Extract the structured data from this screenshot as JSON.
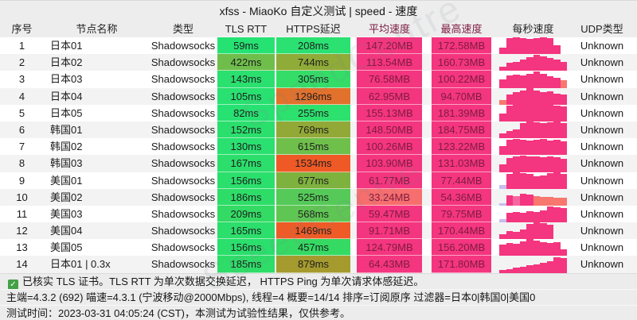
{
  "title": "xfss - MiaoKo 自定义测试 | speed - 速度",
  "watermark": "SpeedCentre",
  "columns": [
    "序号",
    "节点名称",
    "类型",
    "TLS RTT",
    "HTTPS延迟",
    "平均速度",
    "最高速度",
    "每秒速度",
    "UDP类型"
  ],
  "bar_colors": {
    "p": "#f4357f",
    "s": "#f8776e",
    "l": "#c9bcf0",
    "lp": "#f566a0"
  },
  "rows": [
    {
      "idx": "1",
      "name": "日本01",
      "type": "Shadowsocks",
      "tls": "59ms",
      "tls_color": "#26e273",
      "https": "208ms",
      "https_color": "#2ae171",
      "avg": "147.20MB",
      "avg_color": "#f4357f",
      "max": "172.58MB",
      "max_color": "#f4357f",
      "udp": "Unknown",
      "bars": [
        [
          38,
          "p"
        ],
        [
          96,
          "p"
        ],
        [
          100,
          "p"
        ],
        [
          97,
          "p"
        ],
        [
          92,
          "p"
        ],
        [
          97,
          "p"
        ],
        [
          100,
          "p"
        ],
        [
          93,
          "p"
        ],
        [
          55,
          "p"
        ],
        [
          0,
          "p"
        ]
      ]
    },
    {
      "idx": "2",
      "name": "日本02",
      "type": "Shadowsocks",
      "tls": "422ms",
      "tls_color": "#6fbe4c",
      "https": "744ms",
      "https_color": "#8fab38",
      "avg": "113.54MB",
      "avg_color": "#f4357f",
      "max": "160.73MB",
      "max_color": "#f4357f",
      "udp": "Unknown",
      "bars": [
        [
          24,
          "p"
        ],
        [
          48,
          "p"
        ],
        [
          56,
          "p"
        ],
        [
          66,
          "p"
        ],
        [
          80,
          "p"
        ],
        [
          95,
          "p"
        ],
        [
          88,
          "p"
        ],
        [
          78,
          "p"
        ],
        [
          66,
          "p"
        ],
        [
          54,
          "p"
        ]
      ]
    },
    {
      "idx": "3",
      "name": "日本03",
      "type": "Shadowsocks",
      "tls": "143ms",
      "tls_color": "#2ae06e",
      "https": "305ms",
      "https_color": "#33dd68",
      "avg": "76.58MB",
      "avg_color": "#f4357f",
      "max": "100.22MB",
      "max_color": "#f4357f",
      "udp": "Unknown",
      "bars": [
        [
          52,
          "p"
        ],
        [
          72,
          "p"
        ],
        [
          78,
          "p"
        ],
        [
          74,
          "p"
        ],
        [
          82,
          "p"
        ],
        [
          96,
          "p"
        ],
        [
          84,
          "p"
        ],
        [
          68,
          "p"
        ],
        [
          58,
          "p"
        ],
        [
          46,
          "s"
        ]
      ]
    },
    {
      "idx": "4",
      "name": "日本04",
      "type": "Shadowsocks",
      "tls": "105ms",
      "tls_color": "#28e171",
      "https": "1296ms",
      "https_color": "#e2712c",
      "avg": "62.95MB",
      "avg_color": "#f4357f",
      "max": "94.70MB",
      "max_color": "#f4357f",
      "udp": "Unknown",
      "bars": [
        [
          28,
          "s"
        ],
        [
          58,
          "p"
        ],
        [
          74,
          "p"
        ],
        [
          86,
          "p"
        ],
        [
          97,
          "p"
        ],
        [
          86,
          "p"
        ],
        [
          74,
          "p"
        ],
        [
          80,
          "p"
        ],
        [
          64,
          "p"
        ],
        [
          58,
          "p"
        ]
      ]
    },
    {
      "idx": "5",
      "name": "日本05",
      "type": "Shadowsocks",
      "tls": "82ms",
      "tls_color": "#27e272",
      "https": "255ms",
      "https_color": "#2de16e",
      "avg": "155.13MB",
      "avg_color": "#f4357f",
      "max": "181.39MB",
      "max_color": "#f4357f",
      "udp": "Unknown",
      "bars": [
        [
          45,
          "p"
        ],
        [
          92,
          "p"
        ],
        [
          100,
          "p"
        ],
        [
          98,
          "p"
        ],
        [
          100,
          "p"
        ],
        [
          97,
          "p"
        ],
        [
          100,
          "p"
        ],
        [
          98,
          "p"
        ],
        [
          95,
          "p"
        ],
        [
          88,
          "p"
        ]
      ]
    },
    {
      "idx": "6",
      "name": "韩国01",
      "type": "Shadowsocks",
      "tls": "152ms",
      "tls_color": "#2bdf6d",
      "https": "769ms",
      "https_color": "#93a937",
      "avg": "148.50MB",
      "avg_color": "#f4357f",
      "max": "184.75MB",
      "max_color": "#f4357f",
      "udp": "Unknown",
      "bars": [
        [
          30,
          "p"
        ],
        [
          45,
          "p"
        ],
        [
          52,
          "p"
        ],
        [
          92,
          "p"
        ],
        [
          100,
          "p"
        ],
        [
          96,
          "p"
        ],
        [
          90,
          "p"
        ],
        [
          95,
          "p"
        ],
        [
          100,
          "p"
        ],
        [
          92,
          "p"
        ]
      ]
    },
    {
      "idx": "7",
      "name": "韩国02",
      "type": "Shadowsocks",
      "tls": "130ms",
      "tls_color": "#2ae070",
      "https": "615ms",
      "https_color": "#6ec04b",
      "avg": "100.26MB",
      "avg_color": "#f4357f",
      "max": "123.22MB",
      "max_color": "#f4357f",
      "udp": "Unknown",
      "bars": [
        [
          55,
          "p"
        ],
        [
          92,
          "p"
        ],
        [
          96,
          "p"
        ],
        [
          90,
          "p"
        ],
        [
          86,
          "p"
        ],
        [
          92,
          "p"
        ],
        [
          96,
          "p"
        ],
        [
          88,
          "p"
        ],
        [
          92,
          "p"
        ],
        [
          84,
          "p"
        ]
      ]
    },
    {
      "idx": "8",
      "name": "韩国03",
      "type": "Shadowsocks",
      "tls": "167ms",
      "tls_color": "#2cde6b",
      "https": "1534ms",
      "https_color": "#ef5926",
      "avg": "103.90MB",
      "avg_color": "#f4357f",
      "max": "131.03MB",
      "max_color": "#f4357f",
      "udp": "Unknown",
      "bars": [
        [
          46,
          "p"
        ],
        [
          82,
          "p"
        ],
        [
          94,
          "p"
        ],
        [
          97,
          "p"
        ],
        [
          93,
          "p"
        ],
        [
          90,
          "p"
        ],
        [
          86,
          "p"
        ],
        [
          92,
          "p"
        ],
        [
          86,
          "p"
        ],
        [
          78,
          "p"
        ]
      ]
    },
    {
      "idx": "9",
      "name": "美国01",
      "type": "Shadowsocks",
      "tls": "156ms",
      "tls_color": "#2bdf6c",
      "https": "677ms",
      "https_color": "#7eb23f",
      "avg": "61.77MB",
      "avg_color": "#f4357f",
      "max": "77.44MB",
      "max_color": "#f4357f",
      "udp": "Unknown",
      "bars": [
        [
          22,
          "l"
        ],
        [
          88,
          "p"
        ],
        [
          96,
          "p"
        ],
        [
          92,
          "p"
        ],
        [
          88,
          "p"
        ],
        [
          72,
          "p"
        ],
        [
          78,
          "p"
        ],
        [
          92,
          "p"
        ],
        [
          96,
          "p"
        ],
        [
          86,
          "p"
        ]
      ]
    },
    {
      "idx": "10",
      "name": "美国02",
      "type": "Shadowsocks",
      "tls": "186ms",
      "tls_color": "#2edd68",
      "https": "525ms",
      "https_color": "#55ca58",
      "avg": "33.24MB",
      "avg_color": "#f76e6e",
      "max": "54.36MB",
      "max_color": "#f4357f",
      "udp": "Unknown",
      "bars": [
        [
          15,
          "l"
        ],
        [
          62,
          "p"
        ],
        [
          58,
          "lp"
        ],
        [
          68,
          "p"
        ],
        [
          66,
          "p"
        ],
        [
          55,
          "s"
        ],
        [
          52,
          "s"
        ],
        [
          50,
          "s"
        ],
        [
          48,
          "s"
        ],
        [
          46,
          "s"
        ]
      ]
    },
    {
      "idx": "11",
      "name": "美国03",
      "type": "Shadowsocks",
      "tls": "209ms",
      "tls_color": "#33db64",
      "https": "568ms",
      "https_color": "#5fc653",
      "avg": "59.47MB",
      "avg_color": "#f4357f",
      "max": "79.75MB",
      "max_color": "#f4357f",
      "udp": "Unknown",
      "bars": [
        [
          20,
          "l"
        ],
        [
          58,
          "p"
        ],
        [
          64,
          "p"
        ],
        [
          55,
          "p"
        ],
        [
          68,
          "p"
        ],
        [
          62,
          "p"
        ],
        [
          72,
          "p"
        ],
        [
          95,
          "p"
        ],
        [
          90,
          "p"
        ],
        [
          84,
          "p"
        ]
      ]
    },
    {
      "idx": "12",
      "name": "美国04",
      "type": "Shadowsocks",
      "tls": "165ms",
      "tls_color": "#2cde6b",
      "https": "1469ms",
      "https_color": "#ee5b27",
      "avg": "91.71MB",
      "avg_color": "#f4357f",
      "max": "170.44MB",
      "max_color": "#f4357f",
      "udp": "Unknown",
      "bars": [
        [
          30,
          "p"
        ],
        [
          48,
          "p"
        ],
        [
          44,
          "p"
        ],
        [
          56,
          "p"
        ],
        [
          92,
          "p"
        ],
        [
          100,
          "p"
        ],
        [
          94,
          "p"
        ],
        [
          86,
          "p"
        ],
        [
          0,
          "p"
        ],
        [
          0,
          "p"
        ]
      ]
    },
    {
      "idx": "13",
      "name": "美国05",
      "type": "Shadowsocks",
      "tls": "156ms",
      "tls_color": "#2bdf6c",
      "https": "457ms",
      "https_color": "#35da63",
      "avg": "124.79MB",
      "avg_color": "#f4357f",
      "max": "156.20MB",
      "max_color": "#f4357f",
      "udp": "Unknown",
      "bars": [
        [
          70,
          "p"
        ],
        [
          80,
          "p"
        ],
        [
          74,
          "p"
        ],
        [
          88,
          "p"
        ],
        [
          100,
          "p"
        ],
        [
          90,
          "p"
        ],
        [
          84,
          "p"
        ],
        [
          80,
          "p"
        ],
        [
          84,
          "p"
        ],
        [
          38,
          "p"
        ]
      ]
    },
    {
      "idx": "14",
      "name": "日本01 | 0.3x",
      "type": "Shadowsocks",
      "tls": "185ms",
      "tls_color": "#2edd68",
      "https": "879ms",
      "https_color": "#a59a2e",
      "avg": "64.43MB",
      "avg_color": "#f4357f",
      "max": "171.80MB",
      "max_color": "#f4357f",
      "udp": "Unknown",
      "bars": [
        [
          16,
          "p"
        ],
        [
          24,
          "p"
        ],
        [
          30,
          "p"
        ],
        [
          36,
          "p"
        ],
        [
          44,
          "p"
        ],
        [
          52,
          "p"
        ],
        [
          60,
          "p"
        ],
        [
          70,
          "p"
        ],
        [
          95,
          "p"
        ],
        [
          88,
          "p"
        ]
      ]
    }
  ],
  "footer": {
    "check_glyph": "✓",
    "line1": "已核实 TLS 证书。TLS RTT 为单次数据交换延迟， HTTPS Ping 为单次请求体感延迟。",
    "line2": "主端=4.3.2 (692) 喵速=4.3.1 (宁波移动@2000Mbps), 线程=4 概要=14/14 排序=订阅原序 过滤器=日本0|韩国0|美国0",
    "line3": "测试时间：2023-03-31 04:05:24 (CST)，本测试为试验性结果，仅供参考。"
  }
}
